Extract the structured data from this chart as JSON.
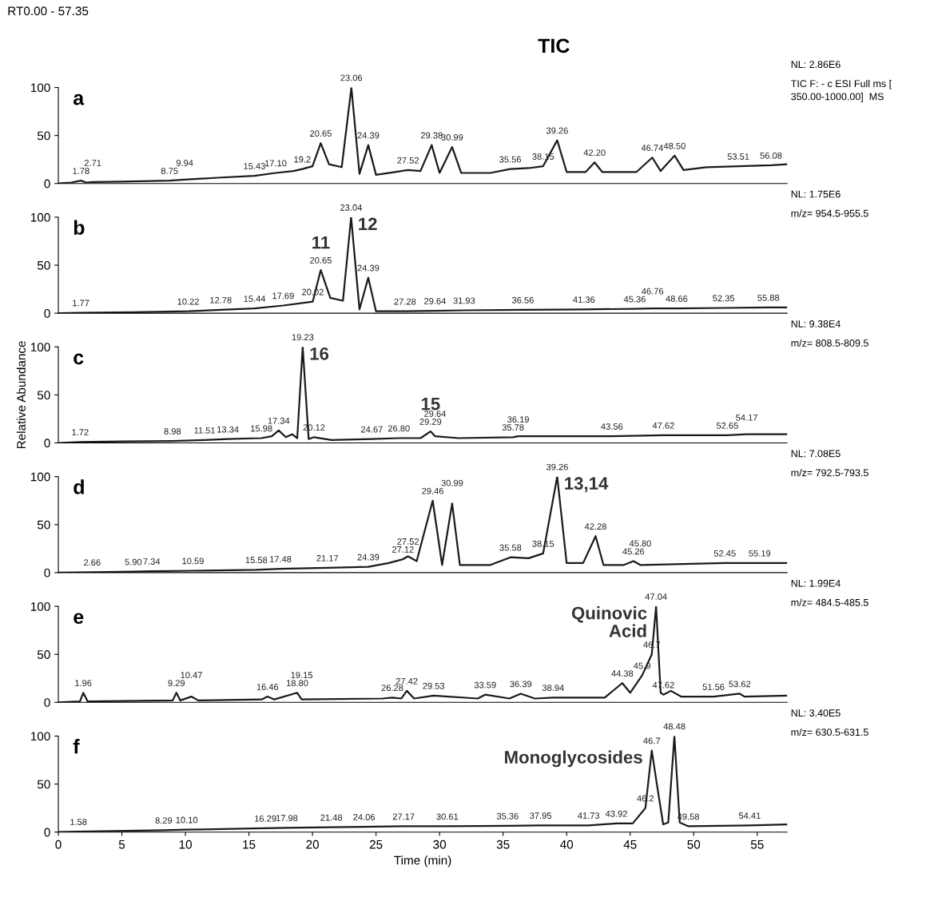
{
  "chart_data": [
    {
      "type": "line",
      "title": "a",
      "subtitle": "TIC",
      "xlim": [
        0,
        57.35
      ],
      "ylim": [
        0,
        100
      ],
      "yticks": [
        0,
        50,
        100
      ],
      "tick_labels": "y",
      "annotations": [
        "RT0.00 - 57.35",
        "NL: 2.86E6",
        "TIC F: - c ESI Full ms [\n350.00-1000.00]  MS",
        {
          "text": "1.78",
          "x": 1.78,
          "y": 3
        },
        {
          "text": "2.71",
          "x": 2.71,
          "y": 1.5
        },
        {
          "text": "8.75",
          "x": 8.75,
          "y": 3
        },
        {
          "text": "9.94",
          "x": 9.94,
          "y": 4
        },
        {
          "text": "15.43",
          "x": 15.43,
          "y": 8
        },
        {
          "text": "17.10",
          "x": 17.1,
          "y": 11
        },
        {
          "text": "19.2",
          "x": 19.2,
          "y": 15
        },
        {
          "text": "20.65",
          "x": 20.65,
          "y": 42
        },
        {
          "text": "23.06",
          "x": 23.06,
          "y": 100
        },
        {
          "text": "24.39",
          "x": 24.39,
          "y": 40
        },
        {
          "text": "27.52",
          "x": 27.52,
          "y": 14
        },
        {
          "text": "29.38",
          "x": 29.38,
          "y": 40
        },
        {
          "text": "30.99",
          "x": 30.99,
          "y": 38
        },
        {
          "text": "35.56",
          "x": 35.56,
          "y": 15
        },
        {
          "text": "38.15",
          "x": 38.15,
          "y": 18
        },
        {
          "text": "39.26",
          "x": 39.26,
          "y": 45
        },
        {
          "text": "42.20",
          "x": 42.2,
          "y": 22
        },
        {
          "text": "46.74",
          "x": 46.74,
          "y": 27
        },
        {
          "text": "48.50",
          "x": 48.5,
          "y": 29
        },
        {
          "text": "53.51",
          "x": 53.51,
          "y": 18
        },
        {
          "text": "56.08",
          "x": 56.08,
          "y": 19
        }
      ],
      "series": [
        {
          "color": "#1a1a1a",
          "x": [
            0,
            1.0,
            1.78,
            2.2,
            2.71,
            5.0,
            8.75,
            9.94,
            12.5,
            15.43,
            17.1,
            18.5,
            19.2,
            20.0,
            20.65,
            21.3,
            22.3,
            23.06,
            23.7,
            24.39,
            25.0,
            26.5,
            27.52,
            28.5,
            29.38,
            30.0,
            30.99,
            31.7,
            34.0,
            35.56,
            37.0,
            38.15,
            39.26,
            40.0,
            41.5,
            42.2,
            42.8,
            45.5,
            46.74,
            47.4,
            48.5,
            49.2,
            51.0,
            53.51,
            56.08,
            57.35
          ],
          "values": [
            0,
            1,
            3,
            1,
            1.5,
            2,
            3,
            4,
            6,
            8,
            11,
            13,
            15,
            18,
            42,
            20,
            17,
            100,
            10,
            40,
            9,
            12,
            14,
            13,
            40,
            11,
            38,
            11,
            11,
            15,
            16,
            18,
            45,
            12,
            12,
            22,
            12,
            12,
            27,
            13,
            29,
            14,
            17,
            18,
            19,
            20
          ]
        }
      ]
    },
    {
      "type": "line",
      "title": "b",
      "xlim": [
        0,
        57.35
      ],
      "ylim": [
        0,
        100
      ],
      "yticks": [
        0,
        50,
        100
      ],
      "tick_labels": "y",
      "annotations": [
        "NL: 1.75E6",
        "m/z= 954.5-955.5",
        {
          "text": "11",
          "x": 20.65,
          "y": 45
        },
        {
          "text": "12",
          "x": 23.04,
          "y": 100
        },
        {
          "text": "1.77",
          "x": 1.77,
          "y": 0.5
        },
        {
          "text": "10.22",
          "x": 10.22,
          "y": 2
        },
        {
          "text": "12.78",
          "x": 12.78,
          "y": 3.5
        },
        {
          "text": "15.44",
          "x": 15.44,
          "y": 5
        },
        {
          "text": "17.69",
          "x": 17.69,
          "y": 8
        },
        {
          "text": "20.02",
          "x": 20.02,
          "y": 12
        },
        {
          "text": "20.65",
          "x": 20.65,
          "y": 45
        },
        {
          "text": "23.04",
          "x": 23.04,
          "y": 100
        },
        {
          "text": "24.39",
          "x": 24.39,
          "y": 37
        },
        {
          "text": "27.28",
          "x": 27.28,
          "y": 2
        },
        {
          "text": "29.64",
          "x": 29.64,
          "y": 2.5
        },
        {
          "text": "31.93",
          "x": 31.93,
          "y": 3
        },
        {
          "text": "36.56",
          "x": 36.56,
          "y": 3.5
        },
        {
          "text": "41.36",
          "x": 41.36,
          "y": 4
        },
        {
          "text": "45.36",
          "x": 45.36,
          "y": 4.5
        },
        {
          "text": "46.76",
          "x": 46.76,
          "y": 5
        },
        {
          "text": "48.66",
          "x": 48.66,
          "y": 5
        },
        {
          "text": "52.35",
          "x": 52.35,
          "y": 5.5
        },
        {
          "text": "55.88",
          "x": 55.88,
          "y": 6
        }
      ],
      "series": [
        {
          "color": "#1a1a1a",
          "x": [
            0,
            1.77,
            6.0,
            10.22,
            12.78,
            15.44,
            17.69,
            20.02,
            20.65,
            21.4,
            22.4,
            23.04,
            23.7,
            24.39,
            25.0,
            27.28,
            29.64,
            31.93,
            36.56,
            41.36,
            45.36,
            46.76,
            48.66,
            52.35,
            55.88,
            57.35
          ],
          "values": [
            0,
            0.5,
            1,
            2,
            3.5,
            5,
            8,
            12,
            45,
            16,
            13,
            100,
            4,
            37,
            2,
            2,
            2.5,
            3,
            3.5,
            4,
            4.5,
            5,
            5,
            5.5,
            6,
            6
          ]
        }
      ]
    },
    {
      "type": "line",
      "title": "c",
      "ylabel": "Relative Abundance",
      "xlim": [
        0,
        57.35
      ],
      "ylim": [
        0,
        100
      ],
      "yticks": [
        0,
        50,
        100
      ],
      "tick_labels": "y",
      "annotations": [
        "NL: 9.38E4",
        "m/z= 808.5-809.5",
        {
          "text": "16",
          "x": 19.23,
          "y": 100
        },
        {
          "text": "15",
          "x": 29.29,
          "y": 12
        },
        {
          "text": "1.72",
          "x": 1.72,
          "y": 1
        },
        {
          "text": "8.98",
          "x": 8.98,
          "y": 2
        },
        {
          "text": "11.51",
          "x": 11.51,
          "y": 3
        },
        {
          "text": "13.34",
          "x": 13.34,
          "y": 4
        },
        {
          "text": "15.98",
          "x": 15.98,
          "y": 5
        },
        {
          "text": "17.34",
          "x": 17.34,
          "y": 13
        },
        {
          "text": "19.23",
          "x": 19.23,
          "y": 100
        },
        {
          "text": "20.12",
          "x": 20.12,
          "y": 6
        },
        {
          "text": "24.67",
          "x": 24.67,
          "y": 4
        },
        {
          "text": "26.80",
          "x": 26.8,
          "y": 5
        },
        {
          "text": "29.29",
          "x": 29.29,
          "y": 12
        },
        {
          "text": "29.64",
          "x": 29.64,
          "y": 7
        },
        {
          "text": "35.78",
          "x": 35.78,
          "y": 6
        },
        {
          "text": "36.19",
          "x": 36.19,
          "y": 7
        },
        {
          "text": "43.56",
          "x": 43.56,
          "y": 7
        },
        {
          "text": "47.62",
          "x": 47.62,
          "y": 8
        },
        {
          "text": "52.65",
          "x": 52.65,
          "y": 8
        },
        {
          "text": "54.17",
          "x": 54.17,
          "y": 9
        }
      ],
      "series": [
        {
          "color": "#1a1a1a",
          "x": [
            0,
            1.72,
            5.0,
            8.98,
            11.51,
            13.34,
            15.98,
            16.8,
            17.34,
            17.9,
            18.4,
            18.8,
            19.23,
            19.7,
            20.12,
            21.5,
            24.67,
            26.8,
            28.5,
            29.29,
            29.64,
            31.5,
            35.78,
            36.19,
            43.56,
            47.62,
            52.65,
            54.17,
            57.35
          ],
          "values": [
            0,
            1,
            1.5,
            2,
            3,
            4,
            5,
            7,
            13,
            6,
            9,
            5,
            100,
            4,
            6,
            3,
            4,
            5,
            5,
            12,
            7,
            5,
            6,
            7,
            7,
            8,
            8,
            9,
            9
          ]
        }
      ]
    },
    {
      "type": "line",
      "title": "d",
      "xlim": [
        0,
        57.35
      ],
      "ylim": [
        0,
        100
      ],
      "yticks": [
        0,
        50,
        100
      ],
      "tick_labels": "y",
      "annotations": [
        "NL: 7.08E5",
        "m/z= 792.5-793.5",
        {
          "text": "13,14",
          "x": 39.26,
          "y": 100
        },
        {
          "text": "2.66",
          "x": 2.66,
          "y": 0.5
        },
        {
          "text": "5.90",
          "x": 5.9,
          "y": 1
        },
        {
          "text": "7.34",
          "x": 7.34,
          "y": 1.5
        },
        {
          "text": "10.59",
          "x": 10.59,
          "y": 2
        },
        {
          "text": "15.58",
          "x": 15.58,
          "y": 3
        },
        {
          "text": "17.48",
          "x": 17.48,
          "y": 4
        },
        {
          "text": "21.17",
          "x": 21.17,
          "y": 5
        },
        {
          "text": "24.39",
          "x": 24.39,
          "y": 6
        },
        {
          "text": "27.12",
          "x": 27.12,
          "y": 14
        },
        {
          "text": "27.52",
          "x": 27.52,
          "y": 17
        },
        {
          "text": "29.46",
          "x": 29.46,
          "y": 75
        },
        {
          "text": "30.99",
          "x": 30.99,
          "y": 72
        },
        {
          "text": "35.58",
          "x": 35.58,
          "y": 16
        },
        {
          "text": "38.15",
          "x": 38.15,
          "y": 20
        },
        {
          "text": "39.26",
          "x": 39.26,
          "y": 100
        },
        {
          "text": "42.28",
          "x": 42.28,
          "y": 38
        },
        {
          "text": "45.26",
          "x": 45.26,
          "y": 12
        },
        {
          "text": "45.80",
          "x": 45.8,
          "y": 8
        },
        {
          "text": "52.45",
          "x": 52.45,
          "y": 10
        },
        {
          "text": "55.19",
          "x": 55.19,
          "y": 10
        }
      ],
      "series": [
        {
          "color": "#1a1a1a",
          "x": [
            0,
            2.66,
            5.9,
            7.34,
            10.59,
            15.58,
            17.48,
            21.17,
            24.39,
            26.0,
            27.12,
            27.52,
            28.2,
            29.46,
            30.2,
            30.99,
            31.6,
            34.0,
            35.58,
            37.0,
            38.15,
            39.26,
            40.0,
            41.3,
            42.28,
            42.9,
            44.5,
            45.26,
            45.8,
            52.45,
            55.19,
            57.35
          ],
          "values": [
            0,
            0.5,
            1,
            1.5,
            2,
            3,
            4,
            5,
            6,
            10,
            14,
            17,
            12,
            75,
            8,
            72,
            8,
            8,
            16,
            15,
            20,
            100,
            10,
            10,
            38,
            8,
            8,
            12,
            8,
            10,
            10,
            10
          ]
        }
      ]
    },
    {
      "type": "line",
      "title": "e",
      "xlim": [
        0,
        57.35
      ],
      "ylim": [
        0,
        100
      ],
      "yticks": [
        0,
        50,
        100
      ],
      "tick_labels": "y",
      "annotations": [
        "NL: 1.99E4",
        "m/z= 484.5-485.5",
        {
          "text": "Quinovic\nAcid",
          "x": 47.04,
          "y": 100
        },
        {
          "text": "1.96",
          "x": 1.96,
          "y": 10
        },
        {
          "text": "9.29",
          "x": 9.29,
          "y": 10
        },
        {
          "text": "10.47",
          "x": 10.47,
          "y": 6
        },
        {
          "text": "16.46",
          "x": 16.46,
          "y": 6
        },
        {
          "text": "18.80",
          "x": 18.8,
          "y": 10
        },
        {
          "text": "19.15",
          "x": 19.15,
          "y": 3
        },
        {
          "text": "26.28",
          "x": 26.28,
          "y": 5
        },
        {
          "text": "27.42",
          "x": 27.42,
          "y": 12
        },
        {
          "text": "29.53",
          "x": 29.53,
          "y": 7
        },
        {
          "text": "33.59",
          "x": 33.59,
          "y": 8
        },
        {
          "text": "36.39",
          "x": 36.39,
          "y": 9
        },
        {
          "text": "38.94",
          "x": 38.94,
          "y": 5
        },
        {
          "text": "44.38",
          "x": 44.38,
          "y": 20
        },
        {
          "text": "45.9",
          "x": 45.94,
          "y": 28
        },
        {
          "text": "46.7",
          "x": 46.7,
          "y": 50
        },
        {
          "text": "47.04",
          "x": 47.04,
          "y": 100
        },
        {
          "text": "47.62",
          "x": 47.62,
          "y": 8
        },
        {
          "text": "51.56",
          "x": 51.56,
          "y": 6
        },
        {
          "text": "53.62",
          "x": 53.62,
          "y": 9
        }
      ],
      "series": [
        {
          "color": "#1a1a1a",
          "x": [
            0,
            1.7,
            1.96,
            2.3,
            9.0,
            9.29,
            9.6,
            10.47,
            11.0,
            16.0,
            16.46,
            17.0,
            18.8,
            19.15,
            25.5,
            26.28,
            27.0,
            27.42,
            28.0,
            29.53,
            33.0,
            33.59,
            35.5,
            36.39,
            37.5,
            38.94,
            43.0,
            44.38,
            45.0,
            45.94,
            46.7,
            47.04,
            47.4,
            47.62,
            48.2,
            49.0,
            51.56,
            53.62,
            54.0,
            57.35
          ],
          "values": [
            0,
            1,
            10,
            1,
            2,
            10,
            2,
            6,
            2,
            3,
            6,
            3,
            10,
            3,
            4,
            5,
            4,
            12,
            4,
            7,
            4,
            8,
            4,
            9,
            4,
            5,
            5,
            20,
            10,
            28,
            50,
            100,
            10,
            8,
            12,
            6,
            6,
            9,
            6,
            7
          ]
        }
      ]
    },
    {
      "type": "line",
      "title": "f",
      "xlabel": "Time (min)",
      "xlim": [
        0,
        57.35
      ],
      "ylim": [
        0,
        100
      ],
      "yticks": [
        0,
        50,
        100
      ],
      "xticks": [
        0,
        5,
        10,
        15,
        20,
        25,
        30,
        35,
        40,
        45,
        50,
        55
      ],
      "annotations": [
        "NL: 3.40E5",
        "m/z= 630.5-631.5",
        {
          "text": "Monoglycosides",
          "x": 46.7,
          "y": 85
        },
        {
          "text": "1.58",
          "x": 1.58,
          "y": 0.5
        },
        {
          "text": "8.29",
          "x": 8.29,
          "y": 2
        },
        {
          "text": "10.10",
          "x": 10.1,
          "y": 2.5
        },
        {
          "text": "16.29",
          "x": 16.29,
          "y": 4
        },
        {
          "text": "17.98",
          "x": 17.98,
          "y": 4.5
        },
        {
          "text": "21.48",
          "x": 21.48,
          "y": 5
        },
        {
          "text": "24.06",
          "x": 24.06,
          "y": 5.5
        },
        {
          "text": "27.17",
          "x": 27.17,
          "y": 6
        },
        {
          "text": "30.61",
          "x": 30.61,
          "y": 6
        },
        {
          "text": "35.36",
          "x": 35.36,
          "y": 6.5
        },
        {
          "text": "37.95",
          "x": 37.95,
          "y": 7
        },
        {
          "text": "41.73",
          "x": 41.73,
          "y": 7
        },
        {
          "text": "43.92",
          "x": 43.92,
          "y": 9
        },
        {
          "text": "46.2",
          "x": 46.2,
          "y": 25
        },
        {
          "text": "46.7",
          "x": 46.7,
          "y": 85
        },
        {
          "text": "48.48",
          "x": 48.48,
          "y": 100
        },
        {
          "text": "49.58",
          "x": 49.58,
          "y": 6
        },
        {
          "text": "54.41",
          "x": 54.41,
          "y": 7
        }
      ],
      "series": [
        {
          "color": "#1a1a1a",
          "x": [
            0,
            1.58,
            8.29,
            10.1,
            16.29,
            17.98,
            21.48,
            24.06,
            27.17,
            30.61,
            35.36,
            37.95,
            41.73,
            43.92,
            45.2,
            46.2,
            46.7,
            47.1,
            47.6,
            48.0,
            48.48,
            48.9,
            49.58,
            54.41,
            57.35
          ],
          "values": [
            0,
            0.5,
            2,
            2.5,
            4,
            4.5,
            5,
            5.5,
            6,
            6,
            6.5,
            7,
            7,
            9,
            9,
            25,
            85,
            50,
            8,
            10,
            100,
            10,
            6,
            7,
            8
          ]
        }
      ]
    }
  ]
}
